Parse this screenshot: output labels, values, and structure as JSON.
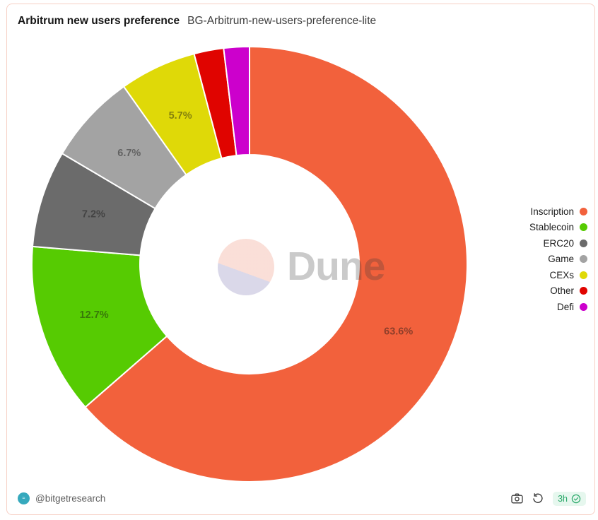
{
  "header": {
    "title": "Arbitrum new users preference",
    "subtitle": "BG-Arbitrum-new-users-preference-lite"
  },
  "watermark": {
    "brand": "Dune"
  },
  "chart_data": {
    "type": "pie",
    "subtype": "donut",
    "title": "Arbitrum new users preference",
    "direction": "clockwise",
    "start_angle_deg": 0,
    "label_format": "percent",
    "label_min_percent": 5,
    "legend_position": "right",
    "slices": [
      {
        "label": "Inscription",
        "value": 63.6,
        "color": "#F2613C",
        "label_shown": true
      },
      {
        "label": "Stablecoin",
        "value": 12.7,
        "color": "#56CB02",
        "label_shown": true
      },
      {
        "label": "ERC20",
        "value": 7.2,
        "color": "#6B6B6B",
        "label_shown": true
      },
      {
        "label": "Game",
        "value": 6.7,
        "color": "#A3A3A3",
        "label_shown": true
      },
      {
        "label": "CEXs",
        "value": 5.7,
        "color": "#DFD908",
        "label_shown": true
      },
      {
        "label": "Other",
        "value": 2.2,
        "color": "#E00400",
        "label_shown": false
      },
      {
        "label": "Defi",
        "value": 1.9,
        "color": "#CC00CC",
        "label_shown": false
      }
    ],
    "visible_percent_labels": [
      "63.6%",
      "12.7%",
      "7.2%",
      "6.7%",
      "5.7%"
    ]
  },
  "footer": {
    "author_handle": "@bitgetresearch",
    "freshness": "3h",
    "status_color": "#29A869",
    "status_bg": "#E6F7EE",
    "icons": [
      "camera-icon",
      "refresh-icon",
      "check-badge-icon"
    ]
  },
  "frame": {
    "border_color": "#F7CFC4"
  }
}
